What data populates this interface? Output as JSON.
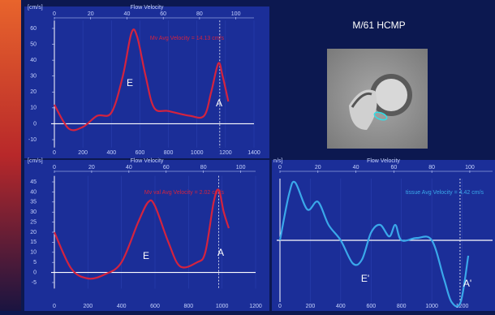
{
  "slide_title": "M/61 HCMP",
  "chart_data": [
    {
      "type": "line",
      "title": "Flow Velocity",
      "y_unit": "[cm/s]",
      "color": "#d4233f",
      "grid": true,
      "annotation": "Mv Avg Velocity = 14.13 cm/s",
      "labels": [
        "E",
        "A"
      ],
      "x": [
        0,
        100,
        200,
        300,
        400,
        480,
        540,
        580,
        640,
        700,
        800,
        950,
        1050,
        1100,
        1150,
        1180,
        1220
      ],
      "values": [
        12,
        -3,
        -2,
        5,
        7,
        30,
        57,
        55,
        30,
        10,
        8,
        5,
        5,
        20,
        38,
        30,
        14
      ],
      "marker_x": 1160,
      "xlim": [
        0,
        1400
      ],
      "xticks": [
        0,
        200,
        400,
        600,
        800,
        1000,
        1200,
        1400
      ],
      "x2lim": [
        0,
        110
      ],
      "x2ticks": [
        0,
        20,
        40,
        60,
        80,
        100
      ],
      "ylim": [
        -15,
        65
      ],
      "yticks": [
        -10,
        0,
        10,
        20,
        30,
        40,
        50,
        60
      ]
    },
    {
      "type": "line",
      "title": "Flow Velocity",
      "y_unit": "[cm/s]",
      "color": "#d4233f",
      "grid": true,
      "annotation": "Mv val Avg Velocity = 2.02 cm/s",
      "labels": [
        "E",
        "A"
      ],
      "x": [
        0,
        100,
        200,
        300,
        400,
        500,
        560,
        600,
        680,
        750,
        850,
        900,
        950,
        980,
        1010,
        1040
      ],
      "values": [
        20,
        2,
        -3,
        -1,
        5,
        25,
        35,
        33,
        15,
        3,
        5,
        10,
        35,
        41,
        30,
        22
      ],
      "marker_x": 980,
      "xlim": [
        0,
        1200
      ],
      "xticks": [
        0,
        200,
        400,
        600,
        800,
        1000,
        1200
      ],
      "x2lim": [
        0,
        108
      ],
      "x2ticks": [
        0,
        20,
        40,
        60,
        80,
        100
      ],
      "ylim": [
        -8,
        48
      ],
      "yticks": [
        -5,
        0,
        5,
        10,
        15,
        20,
        25,
        30,
        35,
        40,
        45
      ]
    },
    {
      "type": "line",
      "title": "Flow Velocity",
      "y_unit": "n/s]",
      "color": "#3aa8ea",
      "grid": true,
      "annotation": "tissue Avg Velocity = 4.42 cm/s",
      "labels": [
        "E'",
        "A'"
      ],
      "x": [
        0,
        60,
        100,
        180,
        250,
        320,
        400,
        480,
        540,
        600,
        660,
        720,
        760,
        800,
        900,
        1000,
        1080,
        1130,
        1190,
        1240
      ],
      "values": [
        0,
        6,
        7.5,
        4,
        5,
        2,
        0,
        -3,
        -2.5,
        1,
        2,
        0.5,
        2,
        0,
        0.3,
        0,
        -5,
        -8,
        -8,
        -2
      ],
      "marker_x": 1186,
      "xlim": [
        0,
        1400
      ],
      "xticks": [
        0,
        200,
        400,
        600,
        800,
        1000,
        1200
      ],
      "x2lim": [
        0,
        112
      ],
      "x2ticks": [
        0,
        20,
        40,
        60,
        80,
        100
      ],
      "ylim": [
        -8,
        8
      ],
      "yticks": []
    }
  ]
}
